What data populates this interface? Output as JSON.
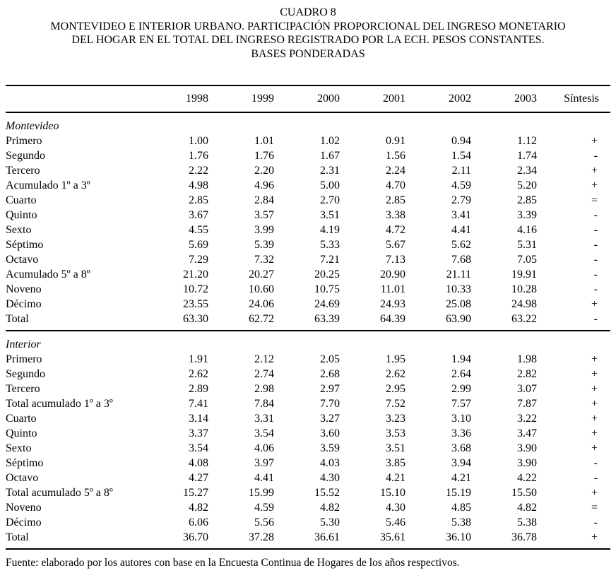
{
  "title": {
    "lines": [
      "CUADRO 8",
      "MONTEVIDEO E INTERIOR URBANO. PARTICIPACIÓN PROPORCIONAL DEL INGRESO MONETARIO",
      "DEL HOGAR EN EL TOTAL DEL INGRESO REGISTRADO POR LA ECH. PESOS CONSTANTES.",
      "BASES PONDERADAS"
    ]
  },
  "table": {
    "columns": [
      "",
      "1998",
      "1999",
      "2000",
      "2001",
      "2002",
      "2003",
      "Síntesis"
    ],
    "sections": [
      {
        "name": "Montevideo",
        "rows": [
          {
            "label": "Primero",
            "values": [
              "1.00",
              "1.01",
              "1.02",
              "0.91",
              "0.94",
              "1.12"
            ],
            "sintesis": "+"
          },
          {
            "label": "Segundo",
            "values": [
              "1.76",
              "1.76",
              "1.67",
              "1.56",
              "1.54",
              "1.74"
            ],
            "sintesis": "-"
          },
          {
            "label": "Tercero",
            "values": [
              "2.22",
              "2.20",
              "2.31",
              "2.24",
              "2.11",
              "2.34"
            ],
            "sintesis": "+"
          },
          {
            "label": "Acumulado 1º a 3º",
            "values": [
              "4.98",
              "4.96",
              "5.00",
              "4.70",
              "4.59",
              "5.20"
            ],
            "sintesis": "+"
          },
          {
            "label": "Cuarto",
            "values": [
              "2.85",
              "2.84",
              "2.70",
              "2.85",
              "2.79",
              "2.85"
            ],
            "sintesis": "="
          },
          {
            "label": "Quinto",
            "values": [
              "3.67",
              "3.57",
              "3.51",
              "3.38",
              "3.41",
              "3.39"
            ],
            "sintesis": "-"
          },
          {
            "label": "Sexto",
            "values": [
              "4.55",
              "3.99",
              "4.19",
              "4.72",
              "4.41",
              "4.16"
            ],
            "sintesis": "-"
          },
          {
            "label": "Séptimo",
            "values": [
              "5.69",
              "5.39",
              "5.33",
              "5.67",
              "5.62",
              "5.31"
            ],
            "sintesis": "-"
          },
          {
            "label": "Octavo",
            "values": [
              "7.29",
              "7.32",
              "7.21",
              "7.13",
              "7.68",
              "7.05"
            ],
            "sintesis": "-"
          },
          {
            "label": "Acumulado 5º a 8º",
            "values": [
              "21.20",
              "20.27",
              "20.25",
              "20.90",
              "21.11",
              "19.91"
            ],
            "sintesis": "-"
          },
          {
            "label": "Noveno",
            "values": [
              "10.72",
              "10.60",
              "10.75",
              "11.01",
              "10.33",
              "10.28"
            ],
            "sintesis": "-"
          },
          {
            "label": "Décimo",
            "values": [
              "23.55",
              "24.06",
              "24.69",
              "24.93",
              "25.08",
              "24.98"
            ],
            "sintesis": "+"
          },
          {
            "label": "Total",
            "values": [
              "63.30",
              "62.72",
              "63.39",
              "64.39",
              "63.90",
              "63.22"
            ],
            "sintesis": "-"
          }
        ]
      },
      {
        "name": "Interior",
        "rows": [
          {
            "label": "Primero",
            "values": [
              "1.91",
              "2.12",
              "2.05",
              "1.95",
              "1.94",
              "1.98"
            ],
            "sintesis": "+"
          },
          {
            "label": "Segundo",
            "values": [
              "2.62",
              "2.74",
              "2.68",
              "2.62",
              "2.64",
              "2.82"
            ],
            "sintesis": "+"
          },
          {
            "label": "Tercero",
            "values": [
              "2.89",
              "2.98",
              "2.97",
              "2.95",
              "2.99",
              "3.07"
            ],
            "sintesis": "+"
          },
          {
            "label": "Total acumulado 1º a 3º",
            "values": [
              "7.41",
              "7.84",
              "7.70",
              "7.52",
              "7.57",
              "7.87"
            ],
            "sintesis": "+"
          },
          {
            "label": "Cuarto",
            "values": [
              "3.14",
              "3.31",
              "3.27",
              "3.23",
              "3.10",
              "3.22"
            ],
            "sintesis": "+"
          },
          {
            "label": "Quinto",
            "values": [
              "3.37",
              "3.54",
              "3.60",
              "3.53",
              "3.36",
              "3.47"
            ],
            "sintesis": "+"
          },
          {
            "label": "Sexto",
            "values": [
              "3.54",
              "4.06",
              "3.59",
              "3.51",
              "3.68",
              "3.90"
            ],
            "sintesis": "+"
          },
          {
            "label": "Séptimo",
            "values": [
              "4.08",
              "3.97",
              "4.03",
              "3.85",
              "3.94",
              "3.90"
            ],
            "sintesis": "-"
          },
          {
            "label": "Octavo",
            "values": [
              "4.27",
              "4.41",
              "4.30",
              "4.21",
              "4.21",
              "4.22"
            ],
            "sintesis": "-"
          },
          {
            "label": "Total acumulado 5º a 8º",
            "values": [
              "15.27",
              "15.99",
              "15.52",
              "15.10",
              "15.19",
              "15.50"
            ],
            "sintesis": "+"
          },
          {
            "label": "Noveno",
            "values": [
              "4.82",
              "4.59",
              "4.82",
              "4.30",
              "4.85",
              "4.82"
            ],
            "sintesis": "="
          },
          {
            "label": "Décimo",
            "values": [
              "6.06",
              "5.56",
              "5.30",
              "5.46",
              "5.38",
              "5.38"
            ],
            "sintesis": "-"
          },
          {
            "label": "Total",
            "values": [
              "36.70",
              "37.28",
              "36.61",
              "35.61",
              "36.10",
              "36.78"
            ],
            "sintesis": "+"
          }
        ]
      }
    ]
  },
  "footer": {
    "source": "Fuente: elaborado por los autores con base en la Encuesta Continua de Hogares de los años respectivos."
  }
}
